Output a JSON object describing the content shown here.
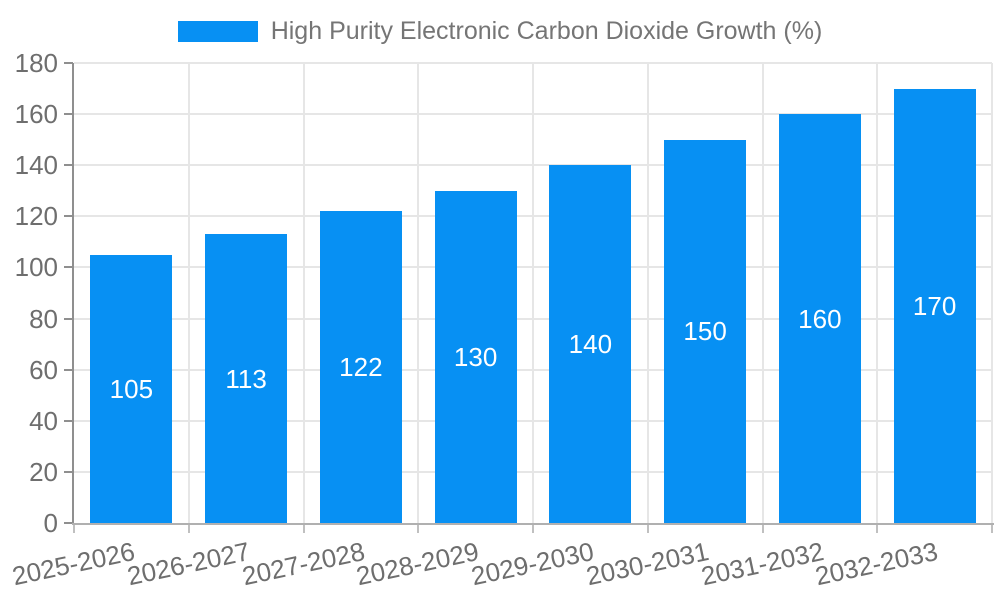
{
  "legend": {
    "label": "High Purity Electronic Carbon Dioxide Growth (%)"
  },
  "colors": {
    "bar": "#0790f3",
    "grid": "#e6e6e6",
    "axis": "#8f8f8f",
    "tick_label": "#6e6e6e",
    "legend_text": "#757575",
    "bar_label": "#ffffff",
    "background": "#ffffff"
  },
  "chart_data": {
    "type": "bar",
    "title": "High Purity Electronic Carbon Dioxide Growth (%)",
    "series_name": "High Purity Electronic Carbon Dioxide Growth (%)",
    "categories": [
      "2025-2026",
      "2026-2027",
      "2027-2028",
      "2028-2029",
      "2029-2030",
      "2030-2031",
      "2031-2032",
      "2032-2033"
    ],
    "values": [
      105,
      113,
      122,
      130,
      140,
      150,
      160,
      170
    ],
    "data_labels": [
      "105",
      "113",
      "122",
      "130",
      "140",
      "150",
      "160",
      "170"
    ],
    "xlabel": "",
    "ylabel": "",
    "ylim": [
      0,
      180
    ],
    "yticks": [
      0,
      20,
      40,
      60,
      80,
      100,
      120,
      140,
      160,
      180
    ],
    "ytick_labels": [
      "0",
      "20",
      "40",
      "60",
      "80",
      "100",
      "120",
      "140",
      "160",
      "180"
    ],
    "grid": true,
    "legend_position": "top-center",
    "bar_color": "#0790f3",
    "x_label_rotation_deg": -12
  }
}
